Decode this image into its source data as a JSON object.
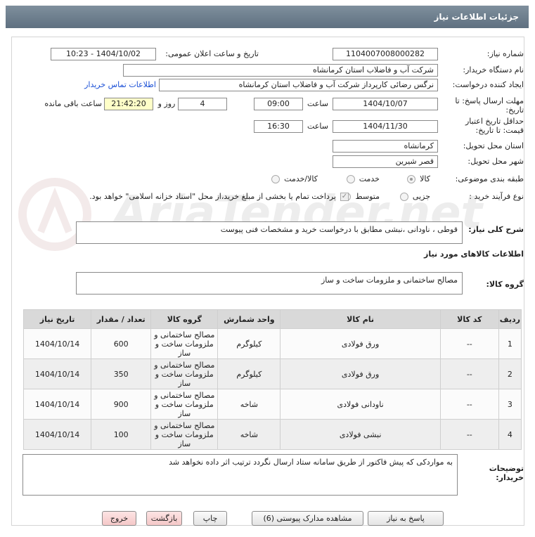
{
  "header": {
    "title": "جزئیات اطلاعات نیاز"
  },
  "watermark": "AriaTender.net",
  "fields": {
    "need_number": {
      "label": "شماره نیاز:",
      "value": "1104007008000282"
    },
    "announce": {
      "label": "تاریخ و ساعت اعلان عمومی:",
      "value": "1404/10/02 - 10:23"
    },
    "buyer": {
      "label": "نام دستگاه خریدار:",
      "value": "شرکت آب و فاضلاب استان کرمانشاه"
    },
    "creator": {
      "label": "ایجاد کننده درخواست:",
      "value": "نرگس رضائی کارپرداز شرکت آب و فاضلاب استان کرمانشاه",
      "link": "اطلاعات تماس خریدار"
    },
    "deadline": {
      "label": "مهلت ارسال پاسخ: تا تاریخ:",
      "date": "1404/10/07",
      "time_label": "ساعت",
      "time": "09:00",
      "days": 4,
      "days_label": "روز و",
      "remaining": "21:42:20",
      "remaining_label": "ساعت باقی مانده"
    },
    "validity": {
      "label": "حداقل تاریخ اعتبار قیمت: تا تاریخ:",
      "date": "1404/11/30",
      "time_label": "ساعت",
      "time": "16:30"
    },
    "province": {
      "label": "استان محل تحویل:",
      "value": "کرمانشاه"
    },
    "city": {
      "label": "شهر محل تحویل:",
      "value": "قصر شیرین"
    },
    "category": {
      "label": "طبقه بندی موضوعی:",
      "options": [
        "کالا",
        "خدمت",
        "کالا/خدمت"
      ],
      "selected": 0
    },
    "process": {
      "label": "نوع فرآیند خرید :",
      "options": [
        "جزیی",
        "متوسط"
      ],
      "checked": true,
      "note": "پرداخت تمام یا بخشی از مبلغ خرید،از محل \"اسناد خزانه اسلامی\" خواهد بود."
    },
    "description": {
      "label": "شرح کلی نیاز:",
      "value": "قوطی ، ناودانی ،نبشی مطابق با درخواست خرید و مشخصات فنی پیوست"
    }
  },
  "goods": {
    "title": "اطلاعات کالاهای مورد نیاز",
    "group_label": "گروه کالا:",
    "group": "مصالح ساختمانی و ملزومات ساخت و ساز"
  },
  "table": {
    "columns": [
      "ردیف",
      "کد کالا",
      "نام کالا",
      "واحد شمارش",
      "گروه کالا",
      "تعداد / مقدار",
      "تاریخ نیاز"
    ],
    "rows": [
      [
        1,
        "--",
        "ورق فولادی",
        "کیلوگرم",
        "مصالح ساختمانی و ملزومات ساخت و ساز",
        600,
        "1404/10/14"
      ],
      [
        2,
        "--",
        "ورق فولادی",
        "کیلوگرم",
        "مصالح ساختمانی و ملزومات ساخت و ساز",
        350,
        "1404/10/14"
      ],
      [
        3,
        "--",
        "ناودانی فولادی",
        "شاخه",
        "مصالح ساختمانی و ملزومات ساخت و ساز",
        900,
        "1404/10/14"
      ],
      [
        4,
        "--",
        "نبشی فولادی",
        "شاخه",
        "مصالح ساختمانی و ملزومات ساخت و ساز",
        100,
        "1404/10/14"
      ]
    ]
  },
  "notes": {
    "label": "توضیحات خریدار:",
    "value": "به مواردکی که پیش فاکتور از طریق سامانه ستاد ارسال نگردد ترتیب اثر داده نخواهد شد"
  },
  "buttons": [
    "پاسخ به نیاز",
    "مشاهده مدارک پیوستی (6)",
    "چاپ",
    "بازگشت",
    "خروج"
  ]
}
